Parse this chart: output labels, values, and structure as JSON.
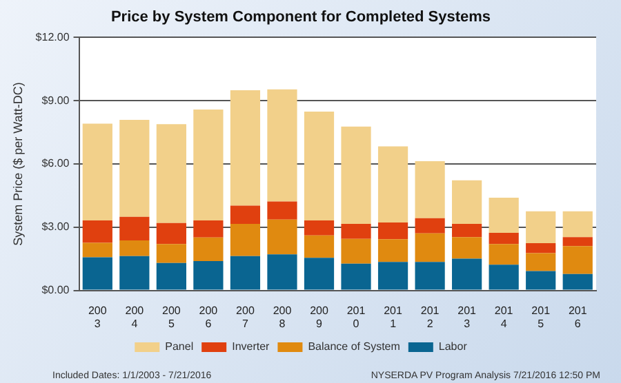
{
  "chart_data": {
    "type": "bar",
    "title": "Price by System Component for Completed Systems",
    "ylabel": "System Price ($ per Watt-DC)",
    "categories": [
      "2003",
      "2004",
      "2005",
      "2006",
      "2007",
      "2008",
      "2009",
      "2010",
      "2011",
      "2012",
      "2013",
      "2014",
      "2015",
      "2016"
    ],
    "stacked": true,
    "legend": "bottom",
    "grid": "y",
    "ylim": [
      0,
      12
    ],
    "yticks": [
      {
        "value": 0,
        "label": "$0.00"
      },
      {
        "value": 3,
        "label": "$3.00"
      },
      {
        "value": 6,
        "label": "$6.00"
      },
      {
        "value": 9,
        "label": "$9.00"
      },
      {
        "value": 12,
        "label": "$12.00"
      }
    ],
    "series": [
      {
        "name": "Labor",
        "color": "#0a6591",
        "values": [
          1.57,
          1.63,
          1.3,
          1.39,
          1.63,
          1.71,
          1.55,
          1.27,
          1.35,
          1.35,
          1.51,
          1.22,
          0.92,
          0.78
        ]
      },
      {
        "name": "Balance of System",
        "color": "#e08a10",
        "values": [
          0.69,
          0.74,
          0.9,
          1.12,
          1.53,
          1.65,
          1.06,
          1.18,
          1.08,
          1.36,
          1.02,
          0.98,
          0.85,
          1.32
        ]
      },
      {
        "name": "Inverter",
        "color": "#e0400f",
        "values": [
          1.06,
          1.12,
          1.0,
          0.81,
          0.86,
          0.86,
          0.71,
          0.71,
          0.79,
          0.72,
          0.63,
          0.53,
          0.47,
          0.43
        ]
      },
      {
        "name": "Panel",
        "color": "#f2d08a",
        "values": [
          4.59,
          4.6,
          4.69,
          5.26,
          5.48,
          5.32,
          5.16,
          4.61,
          3.61,
          2.7,
          2.06,
          1.67,
          1.51,
          1.22
        ]
      }
    ],
    "annotations": [
      "Included Dates: 1/1/2003 - 7/21/2016",
      "NYSERDA PV Program Analysis 7/21/2016 12:50 PM"
    ]
  }
}
